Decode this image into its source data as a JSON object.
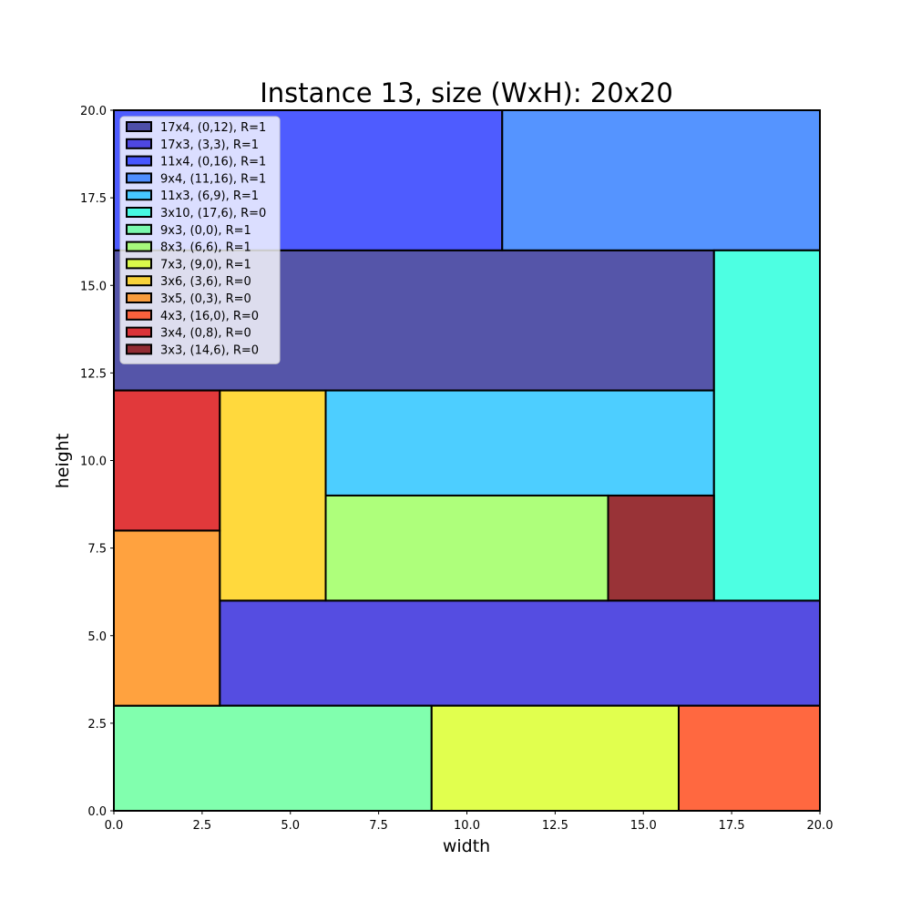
{
  "chart_data": {
    "type": "rectangle-packing",
    "title": "Instance 13, size (WxH): 20x20",
    "xlabel": "width",
    "ylabel": "height",
    "xlim": [
      0,
      20
    ],
    "ylim": [
      0,
      20
    ],
    "xticks": [
      "0.0",
      "2.5",
      "5.0",
      "7.5",
      "10.0",
      "12.5",
      "15.0",
      "17.5",
      "20.0"
    ],
    "yticks": [
      "0.0",
      "2.5",
      "5.0",
      "7.5",
      "10.0",
      "12.5",
      "15.0",
      "17.5",
      "20.0"
    ],
    "legend_position": "upper-left",
    "rectangles": [
      {
        "label": "17x4, (0,12), R=1",
        "x": 0,
        "y": 12,
        "w": 17,
        "h": 4,
        "color": "#2b2b94"
      },
      {
        "label": "17x3, (3,3), R=1",
        "x": 3,
        "y": 3,
        "w": 17,
        "h": 3,
        "color": "#2a21d9"
      },
      {
        "label": "11x4, (0,16), R=1",
        "x": 0,
        "y": 16,
        "w": 11,
        "h": 4,
        "color": "#2233ff"
      },
      {
        "label": "9x4, (11,16), R=1",
        "x": 11,
        "y": 16,
        "w": 9,
        "h": 4,
        "color": "#2a79ff"
      },
      {
        "label": "11x3, (6,9), R=1",
        "x": 6,
        "y": 9,
        "w": 11,
        "h": 3,
        "color": "#20c2ff"
      },
      {
        "label": "3x10, (17,6), R=0",
        "x": 17,
        "y": 6,
        "w": 3,
        "h": 10,
        "color": "#20ffdb"
      },
      {
        "label": "9x3, (0,0), R=1",
        "x": 0,
        "y": 0,
        "w": 9,
        "h": 3,
        "color": "#62ff9a"
      },
      {
        "label": "8x3, (6,6), R=1",
        "x": 6,
        "y": 6,
        "w": 8,
        "h": 3,
        "color": "#9aff5a"
      },
      {
        "label": "7x3, (9,0), R=1",
        "x": 9,
        "y": 0,
        "w": 7,
        "h": 3,
        "color": "#d9ff22"
      },
      {
        "label": "3x6, (3,6), R=0",
        "x": 3,
        "y": 6,
        "w": 3,
        "h": 6,
        "color": "#ffcf0d"
      },
      {
        "label": "3x5, (0,3), R=0",
        "x": 0,
        "y": 3,
        "w": 3,
        "h": 5,
        "color": "#ff8b0f"
      },
      {
        "label": "4x3, (16,0), R=0",
        "x": 16,
        "y": 0,
        "w": 4,
        "h": 3,
        "color": "#ff4210"
      },
      {
        "label": "3x4, (0,8), R=0",
        "x": 0,
        "y": 8,
        "w": 3,
        "h": 4,
        "color": "#d9070a"
      },
      {
        "label": "3x3, (14,6), R=0",
        "x": 14,
        "y": 6,
        "w": 3,
        "h": 3,
        "color": "#7f0005"
      }
    ]
  }
}
